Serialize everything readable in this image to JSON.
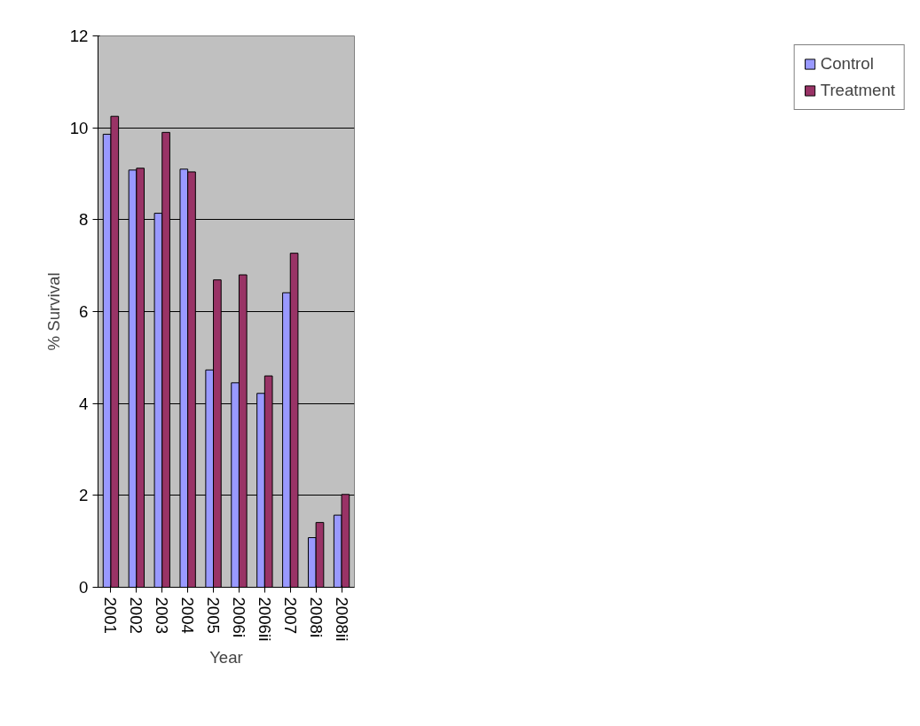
{
  "chart_data": {
    "type": "bar",
    "xlabel": "Year",
    "ylabel": "% Survival",
    "categories": [
      "2001",
      "2002",
      "2003",
      "2004",
      "2005",
      "2006i",
      "2006ii",
      "2007",
      "2008i",
      "2008ii"
    ],
    "series": [
      {
        "name": "Control",
        "color": "#9999ff",
        "values": [
          9.86,
          9.08,
          8.14,
          9.1,
          4.73,
          4.45,
          4.22,
          6.41,
          1.08,
          1.57
        ]
      },
      {
        "name": "Treatment",
        "color": "#993366",
        "values": [
          10.25,
          9.12,
          9.9,
          9.04,
          6.69,
          6.8,
          4.6,
          7.27,
          1.41,
          2.02
        ]
      }
    ],
    "ylim": [
      0,
      12
    ],
    "yticks": [
      0,
      2,
      4,
      6,
      8,
      10,
      12
    ],
    "grid": "y",
    "legend": "right"
  }
}
